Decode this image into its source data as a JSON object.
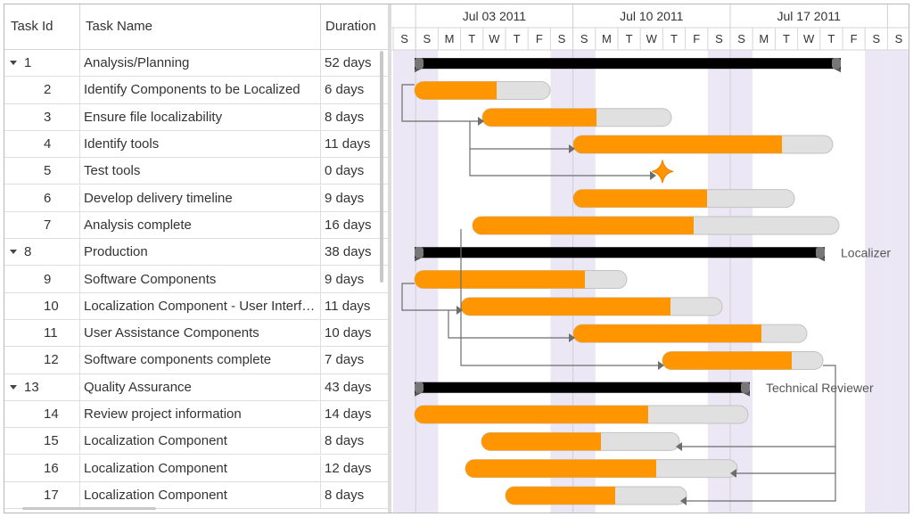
{
  "grid": {
    "headers": {
      "task_id": "Task Id",
      "task_name": "Task Name",
      "duration": "Duration"
    },
    "rows": [
      {
        "id": "1",
        "name": "Analysis/Planning",
        "duration": "52 days",
        "parent": true
      },
      {
        "id": "2",
        "name": "Identify Components to be Localized",
        "duration": "6 days",
        "parent": false
      },
      {
        "id": "3",
        "name": "Ensure file localizability",
        "duration": "8 days",
        "parent": false
      },
      {
        "id": "4",
        "name": "Identify tools",
        "duration": "11 days",
        "parent": false
      },
      {
        "id": "5",
        "name": "Test tools",
        "duration": "0 days",
        "parent": false
      },
      {
        "id": "6",
        "name": "Develop delivery timeline",
        "duration": "9 days",
        "parent": false
      },
      {
        "id": "7",
        "name": "Analysis complete",
        "duration": "16 days",
        "parent": false
      },
      {
        "id": "8",
        "name": "Production",
        "duration": "38 days",
        "parent": true
      },
      {
        "id": "9",
        "name": "Software Components",
        "duration": "9 days",
        "parent": false
      },
      {
        "id": "10",
        "name": "Localization Component - User Interf…",
        "duration": "11 days",
        "parent": false
      },
      {
        "id": "11",
        "name": "User Assistance Components",
        "duration": "10 days",
        "parent": false
      },
      {
        "id": "12",
        "name": "Software components complete",
        "duration": "7 days",
        "parent": false
      },
      {
        "id": "13",
        "name": "Quality Assurance",
        "duration": "43 days",
        "parent": true
      },
      {
        "id": "14",
        "name": "Review project information",
        "duration": "14 days",
        "parent": false
      },
      {
        "id": "15",
        "name": "Localization Component",
        "duration": "8 days",
        "parent": false
      },
      {
        "id": "16",
        "name": "Localization Component",
        "duration": "12 days",
        "parent": false
      },
      {
        "id": "17",
        "name": "Localization Component",
        "duration": "8 days",
        "parent": false
      }
    ]
  },
  "timeline": {
    "weeks": [
      "Jul 03 2011",
      "Jul 10 2011",
      "Jul 17 2011"
    ],
    "days": [
      "S",
      "S",
      "M",
      "T",
      "W",
      "T",
      "F",
      "S",
      "S",
      "M",
      "T",
      "W",
      "T",
      "F",
      "S",
      "S",
      "M",
      "T",
      "W",
      "T",
      "F",
      "S",
      "S"
    ],
    "resource_labels": [
      {
        "row": 7,
        "text": "Localizer"
      },
      {
        "row": 12,
        "text": "Technical Reviewer"
      }
    ]
  },
  "colors": {
    "progress": "#ff9500",
    "bar_track": "#e0e0e0",
    "parent_bar": "#000000",
    "weekend": "#ece7f5",
    "milestone": "#ff9500",
    "connector": "#6d6d6d"
  }
}
